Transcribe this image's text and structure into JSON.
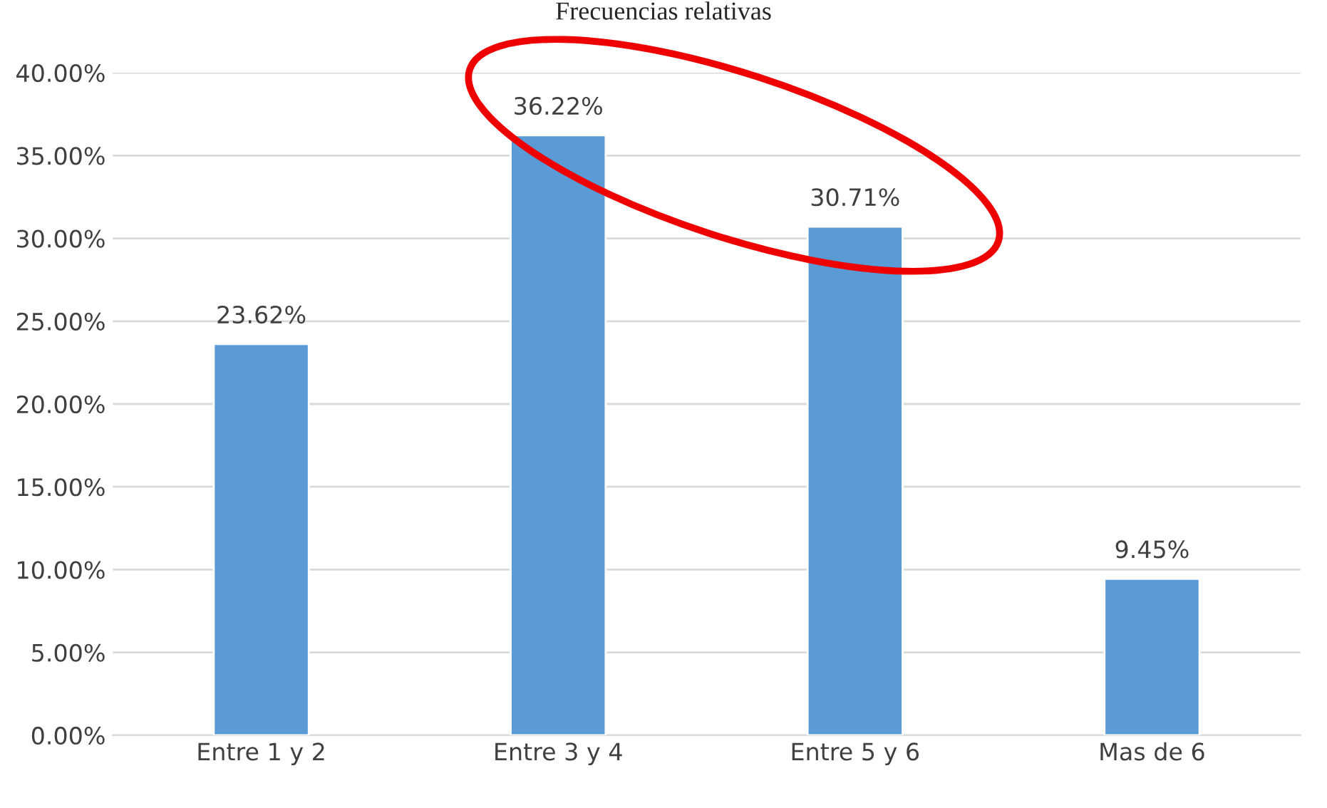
{
  "chart_data": {
    "type": "bar",
    "title": "Frecuencias relativas",
    "categories": [
      "Entre 1 y 2",
      "Entre 3 y 4",
      "Entre 5 y 6",
      "Mas de 6"
    ],
    "values": [
      23.62,
      36.22,
      30.71,
      9.45
    ],
    "value_labels": [
      "23.62%",
      "36.22%",
      "30.71%",
      "9.45%"
    ],
    "color": "#5b9bd5",
    "ylim": [
      0,
      40
    ],
    "yticks": [
      {
        "value": 0,
        "label": "0.00%"
      },
      {
        "value": 5,
        "label": "5.00%"
      },
      {
        "value": 10,
        "label": "10.00%"
      },
      {
        "value": 15,
        "label": "15.00%"
      },
      {
        "value": 20,
        "label": "20.00%"
      },
      {
        "value": 25,
        "label": "25.00%"
      },
      {
        "value": 30,
        "label": "30.00%"
      },
      {
        "value": 35,
        "label": "35.00%"
      },
      {
        "value": 40,
        "label": "40.00%"
      }
    ],
    "grid": "y",
    "legend": false
  }
}
